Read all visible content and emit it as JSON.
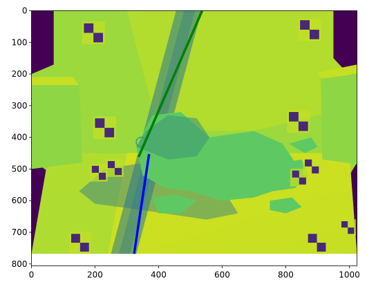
{
  "chart_data": {
    "type": "image",
    "title": "",
    "xlabel": "",
    "ylabel": "",
    "xlim": [
      0,
      1024
    ],
    "ylim": [
      806,
      0
    ],
    "image_extent": {
      "x": [
        0,
        1024
      ],
      "y": [
        0,
        768
      ]
    },
    "colormap": "viridis",
    "x_ticks": [
      0,
      200,
      400,
      600,
      800,
      1000
    ],
    "y_ticks": [
      0,
      100,
      200,
      300,
      400,
      500,
      600,
      700,
      800
    ],
    "x_tick_labels": [
      "0",
      "200",
      "400",
      "600",
      "800",
      "1000"
    ],
    "y_tick_labels": [
      "0",
      "100",
      "200",
      "300",
      "400",
      "500",
      "600",
      "700",
      "800"
    ],
    "series": [
      {
        "color": "#008000",
        "x": [
          537,
          337
        ],
        "y": [
          0,
          462
        ]
      },
      {
        "color": "#0000ff",
        "x": [
          370,
          323
        ],
        "y": [
          453,
          768
        ]
      }
    ],
    "scene_colors": {
      "floor_light": "#d2e11e",
      "wall": "#9bd93c",
      "wall_bright": "#c5df23",
      "frog": "#5ec962",
      "frog_dark": "#3f9a75",
      "shadow": "#2a788e",
      "marker_dark": "#482878",
      "dark_background": "#440154",
      "cabinet": "#8fd644"
    }
  }
}
